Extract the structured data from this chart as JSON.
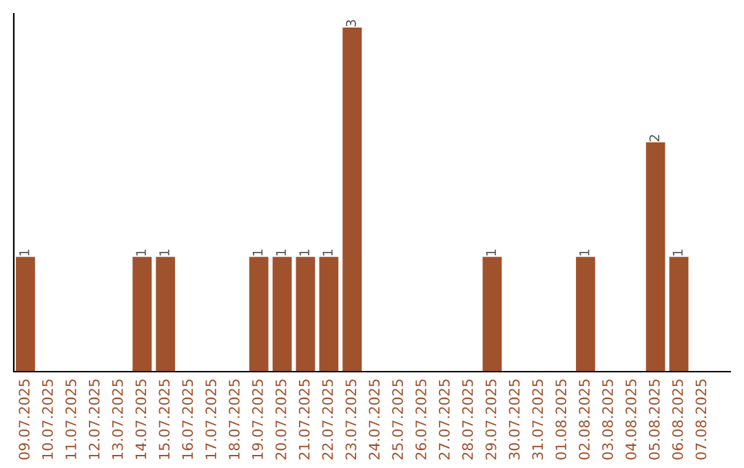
{
  "chart_data": {
    "type": "bar",
    "categories": [
      "09.07.2025",
      "10.07.2025",
      "11.07.2025",
      "12.07.2025",
      "13.07.2025",
      "14.07.2025",
      "15.07.2025",
      "16.07.2025",
      "17.07.2025",
      "18.07.2025",
      "19.07.2025",
      "20.07.2025",
      "21.07.2025",
      "22.07.2025",
      "23.07.2025",
      "24.07.2025",
      "25.07.2025",
      "26.07.2025",
      "27.07.2025",
      "28.07.2025",
      "29.07.2025",
      "30.07.2025",
      "31.07.2025",
      "01.08.2025",
      "02.08.2025",
      "03.08.2025",
      "04.08.2025",
      "05.08.2025",
      "06.08.2025",
      "07.08.2025"
    ],
    "values": [
      1,
      0,
      0,
      0,
      0,
      1,
      1,
      0,
      0,
      0,
      1,
      1,
      1,
      1,
      3,
      0,
      0,
      0,
      0,
      0,
      1,
      0,
      0,
      0,
      1,
      0,
      0,
      2,
      1,
      0
    ],
    "value_labels": [
      "1",
      null,
      null,
      null,
      null,
      "1",
      "1",
      null,
      null,
      null,
      "1",
      "1",
      "1",
      "1",
      "3",
      null,
      null,
      null,
      null,
      null,
      "1",
      null,
      null,
      null,
      "1",
      null,
      null,
      "2",
      "1",
      null
    ],
    "color": "#a0522d",
    "grid": false,
    "legend": false,
    "tick_labels": "x"
  }
}
